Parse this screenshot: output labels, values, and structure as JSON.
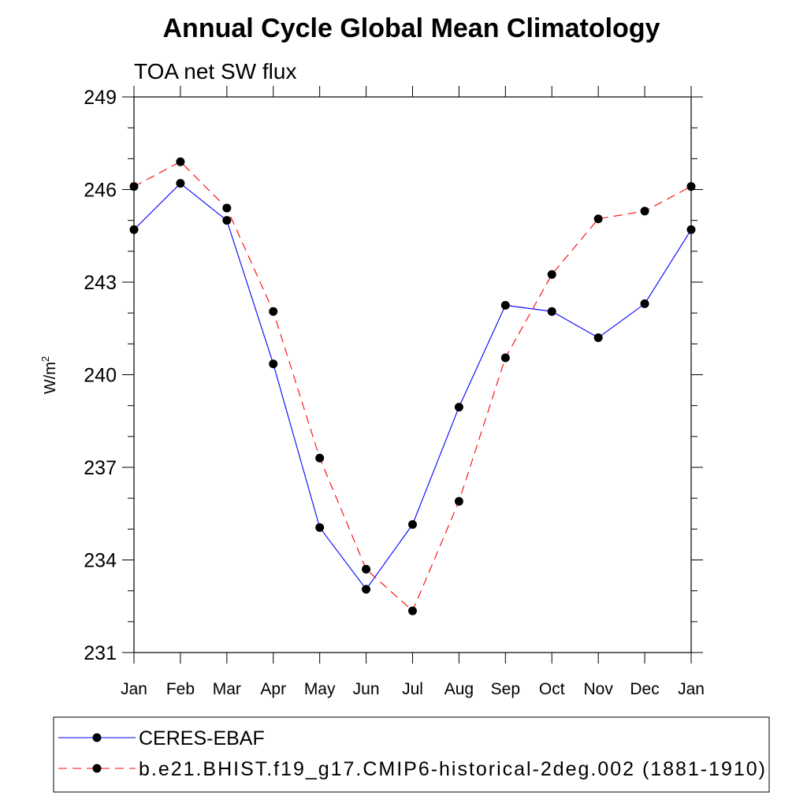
{
  "chart_data": {
    "type": "line",
    "title": "Annual Cycle Global Mean Climatology",
    "subtitle": "TOA net SW flux",
    "xlabel": "",
    "ylabel_base": "W/m",
    "ylabel_sup": "2",
    "categories": [
      "Jan",
      "Feb",
      "Mar",
      "Apr",
      "May",
      "Jun",
      "Jul",
      "Aug",
      "Sep",
      "Oct",
      "Nov",
      "Dec",
      "Jan"
    ],
    "ylim": [
      231,
      249
    ],
    "yticks": [
      231,
      234,
      237,
      240,
      243,
      246,
      249
    ],
    "yminor_step": 1,
    "grid": false,
    "legend_position": "bottom",
    "series": [
      {
        "name": "CERES-EBAF",
        "color": "#0000ff",
        "dash": "solid",
        "marker": "filled-circle",
        "values": [
          244.7,
          246.2,
          245.0,
          240.35,
          235.05,
          233.05,
          235.15,
          238.95,
          242.25,
          242.05,
          241.2,
          242.3,
          244.7
        ]
      },
      {
        "name": "b.e21.BHIST.f19_g17.CMIP6-historical-2deg.002 (1881-1910)",
        "color": "#ff0000",
        "dash": "dashed",
        "marker": "filled-circle",
        "values": [
          246.1,
          246.9,
          245.4,
          242.05,
          237.3,
          233.7,
          232.35,
          235.9,
          240.55,
          243.25,
          245.05,
          245.3,
          246.1
        ]
      }
    ]
  }
}
